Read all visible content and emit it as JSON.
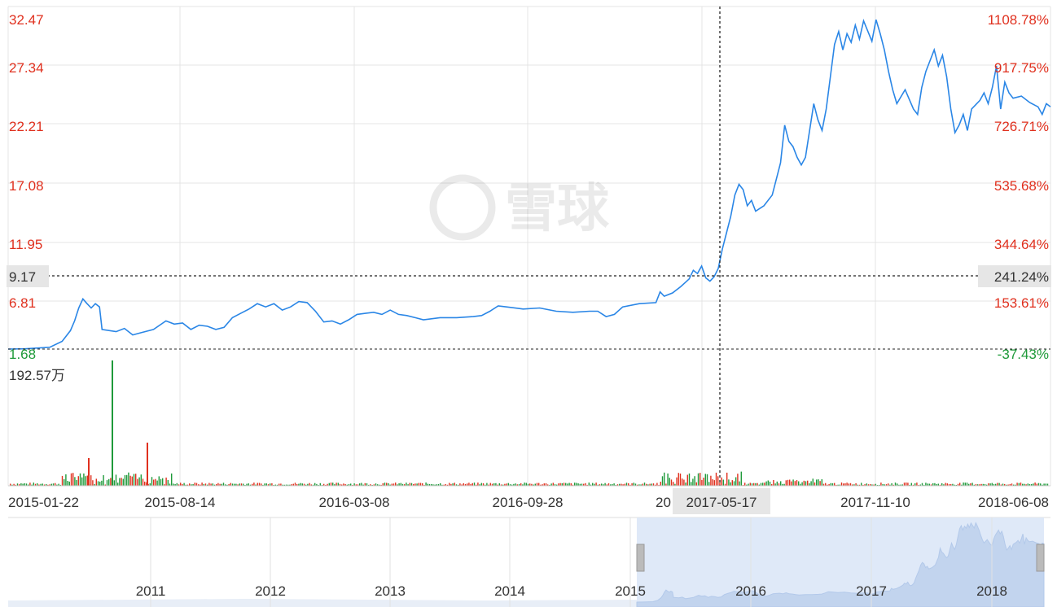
{
  "chart_data": {
    "type": "line",
    "watermark": "雪球",
    "y_left_ticks": [
      "32.47",
      "27.34",
      "22.21",
      "17.08",
      "11.95",
      "9.17",
      "6.81",
      "1.68"
    ],
    "y_right_ticks": [
      "1108.78%",
      "917.75%",
      "726.71%",
      "535.68%",
      "344.64%",
      "241.24%",
      "153.61%",
      "-37.43%"
    ],
    "volume_max_label": "192.57万",
    "x_tick_labels": [
      "2015-01-22",
      "2015-08-14",
      "2016-03-08",
      "2016-09-28",
      "20",
      "2017-11-10",
      "2018-06-08"
    ],
    "crosshair": {
      "date": "2017-05-17",
      "price": "9.17",
      "percent": "241.24%"
    },
    "navigator_years": [
      "2011",
      "2012",
      "2013",
      "2014",
      "2015",
      "2016",
      "2017",
      "2018"
    ],
    "price_series": [
      [
        0,
        1.68
      ],
      [
        0.02,
        1.7
      ],
      [
        0.05,
        1.85
      ],
      [
        0.065,
        2.4
      ],
      [
        0.075,
        3.4
      ],
      [
        0.08,
        4.3
      ],
      [
        0.085,
        5.5
      ],
      [
        0.09,
        6.35
      ],
      [
        0.095,
        5.9
      ],
      [
        0.1,
        5.5
      ],
      [
        0.105,
        5.9
      ],
      [
        0.11,
        5.6
      ],
      [
        0.113,
        3.5
      ],
      [
        0.13,
        3.3
      ],
      [
        0.14,
        3.6
      ],
      [
        0.15,
        3.0
      ],
      [
        0.16,
        3.2
      ],
      [
        0.175,
        3.5
      ],
      [
        0.19,
        4.3
      ],
      [
        0.2,
        4.0
      ],
      [
        0.21,
        4.1
      ],
      [
        0.22,
        3.5
      ],
      [
        0.23,
        3.9
      ],
      [
        0.24,
        3.8
      ],
      [
        0.25,
        3.5
      ],
      [
        0.26,
        3.7
      ],
      [
        0.27,
        4.6
      ],
      [
        0.28,
        5.0
      ],
      [
        0.29,
        5.4
      ],
      [
        0.3,
        5.9
      ],
      [
        0.31,
        5.6
      ],
      [
        0.32,
        5.9
      ],
      [
        0.33,
        5.3
      ],
      [
        0.34,
        5.6
      ],
      [
        0.35,
        6.1
      ],
      [
        0.36,
        6.0
      ],
      [
        0.37,
        5.2
      ],
      [
        0.38,
        4.2
      ],
      [
        0.39,
        4.3
      ],
      [
        0.4,
        4.0
      ],
      [
        0.41,
        4.4
      ],
      [
        0.42,
        4.9
      ],
      [
        0.43,
        5.0
      ],
      [
        0.44,
        5.1
      ],
      [
        0.45,
        4.9
      ],
      [
        0.46,
        5.3
      ],
      [
        0.47,
        4.9
      ],
      [
        0.48,
        4.8
      ],
      [
        0.49,
        4.6
      ],
      [
        0.5,
        4.4
      ],
      [
        0.52,
        4.6
      ],
      [
        0.54,
        4.6
      ],
      [
        0.56,
        4.7
      ],
      [
        0.57,
        4.8
      ],
      [
        0.58,
        5.2
      ],
      [
        0.59,
        5.7
      ],
      [
        0.6,
        5.6
      ],
      [
        0.62,
        5.4
      ],
      [
        0.64,
        5.5
      ],
      [
        0.66,
        5.2
      ],
      [
        0.68,
        5.1
      ],
      [
        0.7,
        5.2
      ],
      [
        0.71,
        5.2
      ],
      [
        0.72,
        4.7
      ],
      [
        0.73,
        4.9
      ],
      [
        0.74,
        5.6
      ],
      [
        0.76,
        5.9
      ],
      [
        0.78,
        6.0
      ],
      [
        0.785,
        7.0
      ],
      [
        0.79,
        6.6
      ],
      [
        0.8,
        6.9
      ],
      [
        0.81,
        7.5
      ],
      [
        0.82,
        8.2
      ],
      [
        0.825,
        9.0
      ],
      [
        0.83,
        8.7
      ],
      [
        0.835,
        9.4
      ],
      [
        0.84,
        8.3
      ],
      [
        0.845,
        8.0
      ],
      [
        0.85,
        8.4
      ],
      [
        0.855,
        9.17
      ],
      [
        0.86,
        11.0
      ],
      [
        0.865,
        12.5
      ],
      [
        0.87,
        14.0
      ],
      [
        0.875,
        16.0
      ],
      [
        0.88,
        17.0
      ],
      [
        0.885,
        16.5
      ],
      [
        0.89,
        15.0
      ],
      [
        0.895,
        15.5
      ],
      [
        0.9,
        14.5
      ],
      [
        0.91,
        15.0
      ],
      [
        0.92,
        16.0
      ],
      [
        0.925,
        17.5
      ],
      [
        0.93,
        19.0
      ],
      [
        0.935,
        22.5
      ],
      [
        0.94,
        21.0
      ],
      [
        0.945,
        20.5
      ],
      [
        0.95,
        19.5
      ],
      [
        0.955,
        18.8
      ],
      [
        0.96,
        19.5
      ],
      [
        0.965,
        22.0
      ],
      [
        0.97,
        24.5
      ],
      [
        0.975,
        23.0
      ],
      [
        0.98,
        22.0
      ],
      [
        0.985,
        24.0
      ],
      [
        0.99,
        27.0
      ],
      [
        0.995,
        30.0
      ],
      [
        1.0,
        31.2
      ],
      [
        1.005,
        29.5
      ],
      [
        1.01,
        31.0
      ],
      [
        1.015,
        30.2
      ],
      [
        1.02,
        31.8
      ],
      [
        1.025,
        30.5
      ],
      [
        1.03,
        32.2
      ],
      [
        1.04,
        30.3
      ],
      [
        1.045,
        32.3
      ],
      [
        1.05,
        31.0
      ],
      [
        1.055,
        29.5
      ],
      [
        1.06,
        27.5
      ],
      [
        1.065,
        25.8
      ],
      [
        1.07,
        24.5
      ],
      [
        1.08,
        25.8
      ],
      [
        1.09,
        24.0
      ],
      [
        1.095,
        23.5
      ],
      [
        1.1,
        26.0
      ],
      [
        1.105,
        27.5
      ],
      [
        1.11,
        28.5
      ],
      [
        1.115,
        29.5
      ],
      [
        1.12,
        28.0
      ],
      [
        1.125,
        29.0
      ],
      [
        1.13,
        27.0
      ],
      [
        1.135,
        24.0
      ],
      [
        1.14,
        21.8
      ],
      [
        1.145,
        22.5
      ],
      [
        1.15,
        23.5
      ],
      [
        1.155,
        22.0
      ],
      [
        1.16,
        24.0
      ],
      [
        1.17,
        24.8
      ],
      [
        1.175,
        25.5
      ],
      [
        1.18,
        24.5
      ],
      [
        1.185,
        26.0
      ],
      [
        1.19,
        28.0
      ],
      [
        1.195,
        24.0
      ],
      [
        1.2,
        26.5
      ],
      [
        1.205,
        25.5
      ],
      [
        1.21,
        25.0
      ],
      [
        1.22,
        25.2
      ],
      [
        1.23,
        24.6
      ],
      [
        1.24,
        24.2
      ],
      [
        1.245,
        23.5
      ],
      [
        1.25,
        24.5
      ],
      [
        1.255,
        24.2
      ]
    ]
  }
}
